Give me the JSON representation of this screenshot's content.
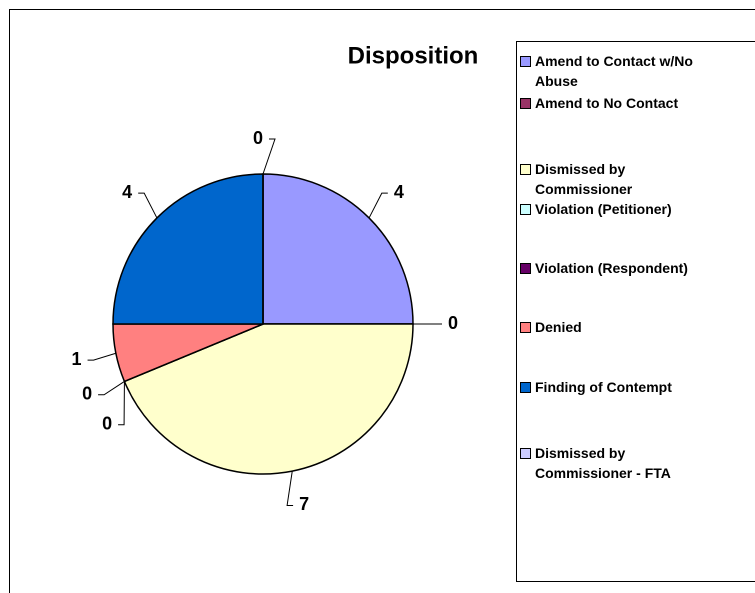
{
  "chart_data": {
    "type": "pie",
    "title": "Disposition",
    "categories": [
      "Amend to Contact w/No Abuse",
      "Amend to No Contact",
      "Dismissed by Commissioner",
      "Violation (Petitioner)",
      "Violation (Respondent)",
      "Denied",
      "Finding of Contempt",
      "Dismissed by Commissioner - FTA"
    ],
    "values": [
      4,
      0,
      7,
      0,
      0,
      1,
      4,
      0
    ],
    "colors": [
      "#9999ff",
      "#993366",
      "#ffffcc",
      "#ccffff",
      "#660066",
      "#ff8080",
      "#0066cc",
      "#ccccff"
    ],
    "legend": "right"
  }
}
